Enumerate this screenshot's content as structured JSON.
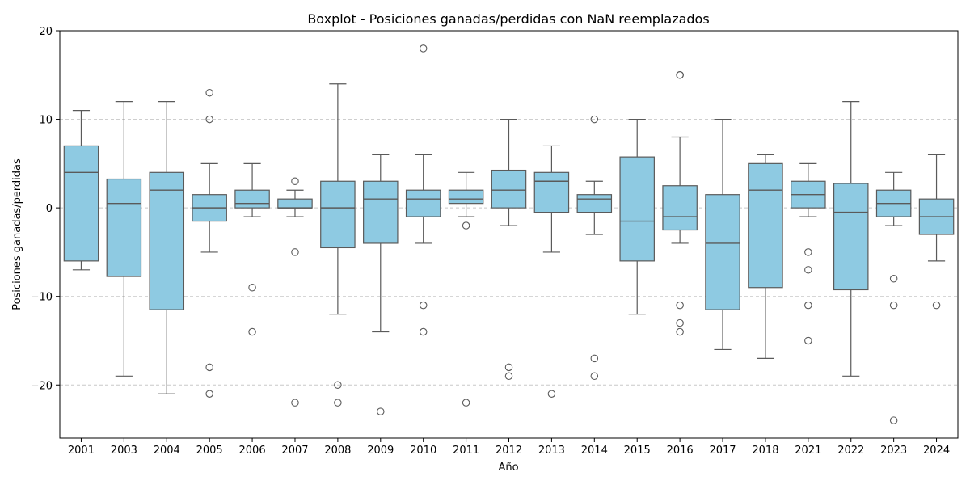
{
  "chart_data": {
    "type": "boxplot",
    "title": "Boxplot - Posiciones ganadas/perdidas con NaN reemplazados",
    "xlabel": "Año",
    "ylabel": "Posiciones ganadas/perdidas",
    "ylim": [
      -26,
      20
    ],
    "yticks": [
      -20,
      -10,
      0,
      10,
      20
    ],
    "ytick_labels": [
      "−20",
      "−10",
      "0",
      "10",
      "20"
    ],
    "grid": "y-dashed",
    "colors": {
      "box_fill": "#8ecae2",
      "box_edge": "#5a5a5a",
      "grid": "#c8c8c8"
    },
    "categories": [
      "2001",
      "2003",
      "2004",
      "2005",
      "2006",
      "2007",
      "2008",
      "2009",
      "2010",
      "2011",
      "2012",
      "2013",
      "2014",
      "2015",
      "2016",
      "2017",
      "2018",
      "2021",
      "2022",
      "2023",
      "2024"
    ],
    "boxes": [
      {
        "q1": -6,
        "median": 4,
        "q3": 7,
        "whislo": -7,
        "whishi": 11,
        "fliers": []
      },
      {
        "q1": -7.75,
        "median": 0.5,
        "q3": 3.25,
        "whislo": -19,
        "whishi": 12,
        "fliers": []
      },
      {
        "q1": -11.5,
        "median": 2,
        "q3": 4,
        "whislo": -21,
        "whishi": 12,
        "fliers": []
      },
      {
        "q1": -1.5,
        "median": 0,
        "q3": 1.5,
        "whislo": -5,
        "whishi": 5,
        "fliers": [
          13,
          10,
          -18,
          -21
        ]
      },
      {
        "q1": 0,
        "median": 0.5,
        "q3": 2,
        "whislo": -1,
        "whishi": 5,
        "fliers": [
          -9,
          -14
        ]
      },
      {
        "q1": 0,
        "median": 0,
        "q3": 1,
        "whislo": -1,
        "whishi": 2,
        "fliers": [
          3,
          -5,
          -22
        ]
      },
      {
        "q1": -4.5,
        "median": 0,
        "q3": 3,
        "whislo": -12,
        "whishi": 14,
        "fliers": [
          -20,
          -22
        ]
      },
      {
        "q1": -4,
        "median": 1,
        "q3": 3,
        "whislo": -14,
        "whishi": 6,
        "fliers": [
          -23
        ]
      },
      {
        "q1": -1,
        "median": 1,
        "q3": 2,
        "whislo": -4,
        "whishi": 6,
        "fliers": [
          18,
          -11,
          -14
        ]
      },
      {
        "q1": 0.5,
        "median": 1,
        "q3": 2,
        "whislo": -1,
        "whishi": 4,
        "fliers": [
          -2,
          -22
        ]
      },
      {
        "q1": 0,
        "median": 2,
        "q3": 4.25,
        "whislo": -2,
        "whishi": 10,
        "fliers": [
          -18,
          -19
        ]
      },
      {
        "q1": -0.5,
        "median": 3,
        "q3": 4,
        "whislo": -5,
        "whishi": 7,
        "fliers": [
          -21
        ]
      },
      {
        "q1": -0.5,
        "median": 1,
        "q3": 1.5,
        "whislo": -3,
        "whishi": 3,
        "fliers": [
          10,
          -17,
          -19
        ]
      },
      {
        "q1": -6,
        "median": -1.5,
        "q3": 5.75,
        "whislo": -12,
        "whishi": 10,
        "fliers": []
      },
      {
        "q1": -2.5,
        "median": -1,
        "q3": 2.5,
        "whislo": -4,
        "whishi": 8,
        "fliers": [
          15,
          15,
          -11,
          -13,
          -14
        ]
      },
      {
        "q1": -11.5,
        "median": -4,
        "q3": 1.5,
        "whislo": -16,
        "whishi": 10,
        "fliers": []
      },
      {
        "q1": -9,
        "median": 2,
        "q3": 5,
        "whislo": -17,
        "whishi": 6,
        "fliers": []
      },
      {
        "q1": 0,
        "median": 1.5,
        "q3": 3,
        "whislo": -1,
        "whishi": 5,
        "fliers": [
          -5,
          -7,
          -11,
          -15
        ]
      },
      {
        "q1": -9.25,
        "median": -0.5,
        "q3": 2.75,
        "whislo": -19,
        "whishi": 12,
        "fliers": []
      },
      {
        "q1": -1,
        "median": 0.5,
        "q3": 2,
        "whislo": -2,
        "whishi": 4,
        "fliers": [
          -8,
          -11,
          -24
        ]
      },
      {
        "q1": -3,
        "median": -1,
        "q3": 1,
        "whislo": -6,
        "whishi": 6,
        "fliers": [
          -11
        ]
      }
    ]
  }
}
